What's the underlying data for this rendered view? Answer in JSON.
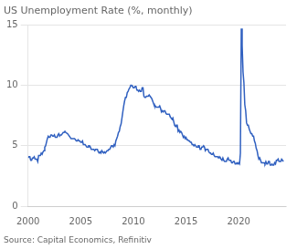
{
  "chart_data": {
    "type": "line",
    "title": "US Unemployment Rate (%, monthly)",
    "annotations": [
      "Source: Capital Economics, Refinitiv"
    ],
    "color": "#3060c0",
    "grid": "y",
    "xlim": [
      2000.0,
      2024.5
    ],
    "xticks": [
      2000,
      2005,
      2010,
      2015,
      2020
    ],
    "ylim": [
      0,
      15
    ],
    "yticks": [
      0,
      5,
      10,
      15
    ],
    "x": [
      2000.0,
      2000.083,
      2000.167,
      2000.25,
      2000.333,
      2000.417,
      2000.5,
      2000.583,
      2000.667,
      2000.75,
      2000.833,
      2000.917,
      2001.0,
      2001.083,
      2001.167,
      2001.25,
      2001.333,
      2001.417,
      2001.5,
      2001.583,
      2001.667,
      2001.75,
      2001.833,
      2001.917,
      2002.0,
      2002.083,
      2002.167,
      2002.25,
      2002.333,
      2002.417,
      2002.5,
      2002.583,
      2002.667,
      2002.75,
      2002.833,
      2002.917,
      2003.0,
      2003.083,
      2003.167,
      2003.25,
      2003.333,
      2003.417,
      2003.5,
      2003.583,
      2003.667,
      2003.75,
      2003.833,
      2003.917,
      2004.0,
      2004.083,
      2004.167,
      2004.25,
      2004.333,
      2004.417,
      2004.5,
      2004.583,
      2004.667,
      2004.75,
      2004.833,
      2004.917,
      2005.0,
      2005.083,
      2005.167,
      2005.25,
      2005.333,
      2005.417,
      2005.5,
      2005.583,
      2005.667,
      2005.75,
      2005.833,
      2005.917,
      2006.0,
      2006.083,
      2006.167,
      2006.25,
      2006.333,
      2006.417,
      2006.5,
      2006.583,
      2006.667,
      2006.75,
      2006.833,
      2006.917,
      2007.0,
      2007.083,
      2007.167,
      2007.25,
      2007.333,
      2007.417,
      2007.5,
      2007.583,
      2007.667,
      2007.75,
      2007.833,
      2007.917,
      2008.0,
      2008.083,
      2008.167,
      2008.25,
      2008.333,
      2008.417,
      2008.5,
      2008.583,
      2008.667,
      2008.75,
      2008.833,
      2008.917,
      2009.0,
      2009.083,
      2009.167,
      2009.25,
      2009.333,
      2009.417,
      2009.5,
      2009.583,
      2009.667,
      2009.75,
      2009.833,
      2009.917,
      2010.0,
      2010.083,
      2010.167,
      2010.25,
      2010.333,
      2010.417,
      2010.5,
      2010.583,
      2010.667,
      2010.75,
      2010.833,
      2010.917,
      2011.0,
      2011.083,
      2011.167,
      2011.25,
      2011.333,
      2011.417,
      2011.5,
      2011.583,
      2011.667,
      2011.75,
      2011.833,
      2011.917,
      2012.0,
      2012.083,
      2012.167,
      2012.25,
      2012.333,
      2012.417,
      2012.5,
      2012.583,
      2012.667,
      2012.75,
      2012.833,
      2012.917,
      2013.0,
      2013.083,
      2013.167,
      2013.25,
      2013.333,
      2013.417,
      2013.5,
      2013.583,
      2013.667,
      2013.75,
      2013.833,
      2013.917,
      2014.0,
      2014.083,
      2014.167,
      2014.25,
      2014.333,
      2014.417,
      2014.5,
      2014.583,
      2014.667,
      2014.75,
      2014.833,
      2014.917,
      2015.0,
      2015.083,
      2015.167,
      2015.25,
      2015.333,
      2015.417,
      2015.5,
      2015.583,
      2015.667,
      2015.75,
      2015.833,
      2015.917,
      2016.0,
      2016.083,
      2016.167,
      2016.25,
      2016.333,
      2016.417,
      2016.5,
      2016.583,
      2016.667,
      2016.75,
      2016.833,
      2016.917,
      2017.0,
      2017.083,
      2017.167,
      2017.25,
      2017.333,
      2017.417,
      2017.5,
      2017.583,
      2017.667,
      2017.75,
      2017.833,
      2017.917,
      2018.0,
      2018.083,
      2018.167,
      2018.25,
      2018.333,
      2018.417,
      2018.5,
      2018.583,
      2018.667,
      2018.75,
      2018.833,
      2018.917,
      2019.0,
      2019.083,
      2019.167,
      2019.25,
      2019.333,
      2019.417,
      2019.5,
      2019.583,
      2019.667,
      2019.75,
      2019.833,
      2019.917,
      2020.0,
      2020.083,
      2020.167,
      2020.25,
      2020.333,
      2020.417,
      2020.5,
      2020.583,
      2020.667,
      2020.75,
      2020.833,
      2020.917,
      2021.0,
      2021.083,
      2021.167,
      2021.25,
      2021.333,
      2021.417,
      2021.5,
      2021.583,
      2021.667,
      2021.75,
      2021.833,
      2021.917,
      2022.0,
      2022.083,
      2022.167,
      2022.25,
      2022.333,
      2022.417,
      2022.5,
      2022.583,
      2022.667,
      2022.75,
      2022.833,
      2022.917,
      2023.0,
      2023.083,
      2023.167,
      2023.25,
      2023.333,
      2023.417,
      2023.5,
      2023.583,
      2023.667,
      2023.75,
      2023.833,
      2023.917,
      2024.0,
      2024.083,
      2024.167,
      2024.25
    ],
    "values": [
      4.0,
      4.1,
      4.1,
      3.8,
      3.8,
      4.0,
      4.0,
      4.1,
      3.9,
      3.9,
      3.9,
      3.7,
      4.2,
      4.2,
      4.2,
      4.4,
      4.3,
      4.5,
      4.6,
      4.9,
      5.0,
      5.3,
      5.6,
      5.8,
      5.7,
      5.7,
      5.9,
      5.9,
      5.8,
      5.8,
      5.9,
      5.7,
      5.7,
      5.7,
      5.9,
      6.0,
      5.8,
      5.9,
      5.9,
      6.0,
      6.1,
      6.1,
      6.2,
      6.1,
      6.1,
      6.0,
      5.9,
      5.8,
      5.7,
      5.6,
      5.6,
      5.6,
      5.6,
      5.6,
      5.5,
      5.4,
      5.4,
      5.5,
      5.4,
      5.4,
      5.3,
      5.3,
      5.4,
      5.1,
      5.1,
      5.1,
      5.0,
      4.9,
      4.9,
      5.0,
      5.0,
      4.9,
      4.7,
      4.7,
      4.7,
      4.7,
      4.6,
      4.7,
      4.7,
      4.7,
      4.5,
      4.4,
      4.5,
      4.4,
      4.6,
      4.5,
      4.4,
      4.5,
      4.4,
      4.5,
      4.6,
      4.6,
      4.7,
      4.7,
      4.7,
      5.0,
      5.0,
      4.9,
      5.1,
      5.0,
      5.4,
      5.6,
      5.8,
      6.1,
      6.2,
      6.6,
      6.8,
      7.3,
      7.8,
      8.3,
      8.7,
      9.0,
      9.0,
      9.4,
      9.5,
      9.7,
      9.8,
      10.0,
      10.0,
      9.9,
      9.8,
      9.8,
      9.9,
      9.9,
      9.6,
      9.6,
      9.5,
      9.6,
      9.5,
      9.5,
      9.8,
      9.8,
      9.1,
      9.0,
      9.0,
      9.1,
      9.1,
      9.1,
      9.2,
      9.1,
      9.0,
      8.9,
      8.7,
      8.5,
      8.3,
      8.3,
      8.2,
      8.2,
      8.2,
      8.2,
      8.3,
      8.1,
      7.8,
      7.9,
      7.8,
      7.9,
      7.9,
      7.7,
      7.6,
      7.6,
      7.6,
      7.6,
      7.4,
      7.3,
      7.2,
      7.3,
      7.0,
      6.7,
      6.6,
      6.7,
      6.7,
      6.2,
      6.3,
      6.1,
      6.2,
      6.1,
      5.9,
      5.7,
      5.8,
      5.6,
      5.7,
      5.5,
      5.5,
      5.4,
      5.4,
      5.3,
      5.3,
      5.1,
      5.1,
      5.0,
      5.1,
      5.0,
      4.9,
      4.9,
      5.0,
      5.0,
      4.7,
      4.7,
      4.9,
      4.9,
      5.0,
      4.9,
      4.6,
      4.7,
      4.7,
      4.7,
      4.5,
      4.4,
      4.4,
      4.3,
      4.3,
      4.4,
      4.2,
      4.1,
      4.1,
      4.1,
      4.1,
      4.0,
      4.1,
      4.0,
      3.9,
      3.8,
      4.0,
      3.8,
      3.7,
      3.7,
      3.7,
      3.9,
      4.0,
      3.8,
      3.8,
      3.8,
      3.6,
      3.6,
      3.7,
      3.7,
      3.5,
      3.5,
      3.6,
      3.5,
      3.6,
      3.5,
      4.4,
      14.7,
      13.3,
      11.1,
      10.2,
      8.4,
      7.9,
      6.9,
      6.7,
      6.7,
      6.4,
      6.2,
      6.0,
      6.0,
      5.8,
      5.8,
      5.4,
      5.2,
      4.8,
      4.6,
      4.2,
      3.9,
      4.0,
      3.8,
      3.6,
      3.6,
      3.6,
      3.6,
      3.5,
      3.7,
      3.5,
      3.5,
      3.7,
      3.7,
      3.4,
      3.4,
      3.5,
      3.4,
      3.4,
      3.6,
      3.5,
      3.8,
      3.8,
      3.9,
      3.7,
      3.7,
      3.7,
      3.9,
      3.8,
      3.7
    ]
  }
}
